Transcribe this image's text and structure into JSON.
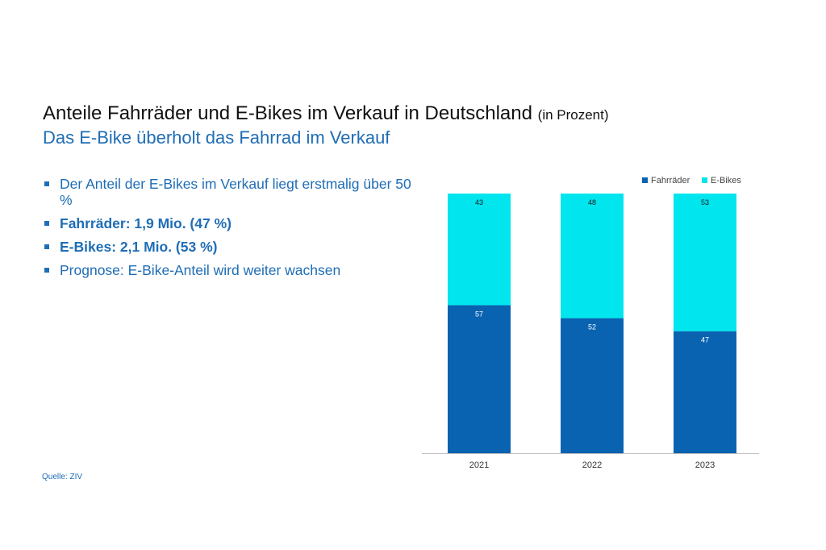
{
  "slide": {
    "title": "Anteile Fahrräder und E-Bikes im Verkauf in Deutschland",
    "title_unit": "(in Prozent)",
    "subtitle": "Das E-Bike überholt das Fahrrad im Verkauf",
    "bullets": [
      {
        "text": "Der Anteil der E-Bikes im Verkauf liegt erstmalig über 50 %",
        "bold": false
      },
      {
        "text": "Fahrräder: 1,9 Mio. (47 %)",
        "bold": true
      },
      {
        "text": "E-Bikes: 2,1 Mio. (53 %)",
        "bold": true
      },
      {
        "text": "Prognose: E-Bike-Anteil wird weiter wachsen",
        "bold": false
      }
    ],
    "source": "Quelle: ZIV"
  },
  "colors": {
    "accent": "#1f6db5",
    "fahrraeder": "#0a63b1",
    "ebikes": "#00e5ee"
  },
  "chart_data": {
    "type": "bar",
    "stacked": true,
    "categories": [
      "2021",
      "2022",
      "2023"
    ],
    "series": [
      {
        "name": "Fahrräder",
        "values": [
          57,
          52,
          47
        ],
        "color": "#0a63b1"
      },
      {
        "name": "E-Bikes",
        "values": [
          43,
          48,
          53
        ],
        "color": "#00e5ee"
      }
    ],
    "ylim": [
      0,
      100
    ],
    "grid": false,
    "legend": "top-right",
    "data_labels": true
  }
}
